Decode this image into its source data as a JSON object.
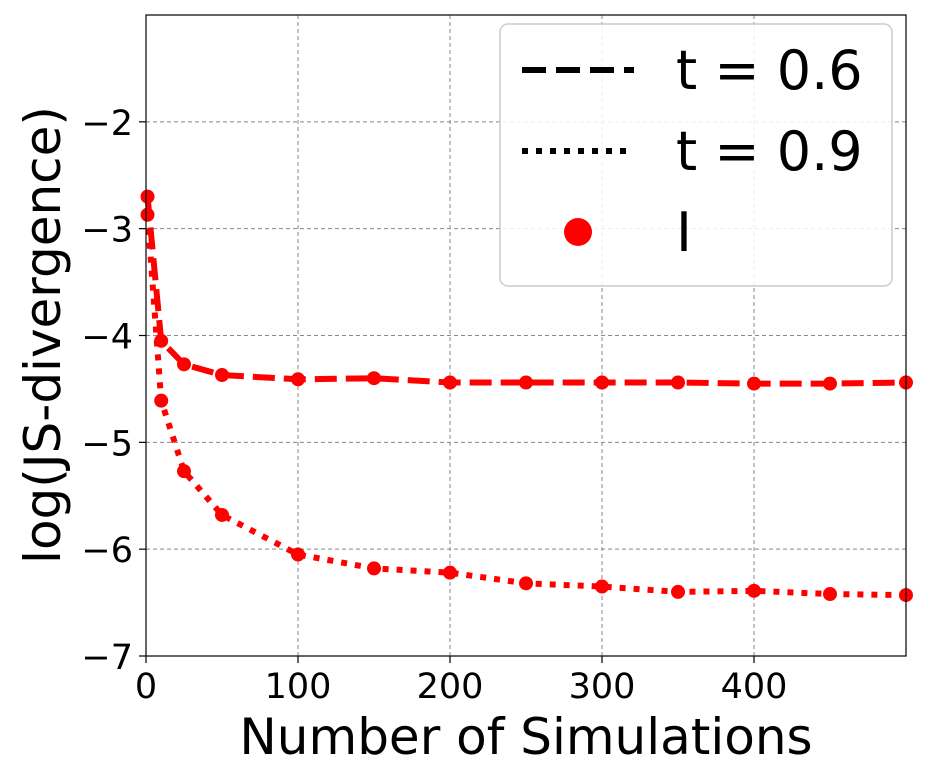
{
  "chart_data": {
    "type": "line",
    "xlabel": "Number of Simulations",
    "ylabel": "log(JS-divergence)",
    "xlim": [
      0,
      500
    ],
    "ylim": [
      -7,
      -1
    ],
    "x_ticks": [
      0,
      100,
      200,
      300,
      400
    ],
    "y_ticks": [
      -7,
      -6,
      -5,
      -4,
      -3,
      -2
    ],
    "x_tick_labels": [
      "0",
      "100",
      "200",
      "300",
      "400"
    ],
    "y_tick_labels": [
      "−7",
      "−6",
      "−5",
      "−4",
      "−3",
      "−2"
    ],
    "grid": true,
    "legend_position": "top-right",
    "series": [
      {
        "name": "t = 0.6",
        "style": "dashed",
        "color": "#ff0000",
        "x": [
          1,
          10,
          25,
          50,
          100,
          150,
          200,
          250,
          300,
          350,
          400,
          450,
          500
        ],
        "y": [
          -2.7,
          -4.05,
          -4.27,
          -4.37,
          -4.41,
          -4.4,
          -4.44,
          -4.44,
          -4.44,
          -4.44,
          -4.45,
          -4.45,
          -4.44
        ]
      },
      {
        "name": "t = 0.9",
        "style": "dotted",
        "color": "#ff0000",
        "x": [
          1,
          10,
          25,
          50,
          100,
          150,
          200,
          250,
          300,
          350,
          400,
          450,
          500
        ],
        "y": [
          -2.87,
          -4.61,
          -5.27,
          -5.68,
          -6.05,
          -6.18,
          -6.22,
          -6.32,
          -6.35,
          -6.4,
          -6.39,
          -6.42,
          -6.43
        ]
      }
    ],
    "legend": [
      {
        "label": "t = 0.6",
        "style": "dashed",
        "color": "#000000"
      },
      {
        "label": "t = 0.9",
        "style": "dotted",
        "color": "#000000"
      },
      {
        "label": "I",
        "style": "marker",
        "color": "#ff0000"
      }
    ]
  }
}
